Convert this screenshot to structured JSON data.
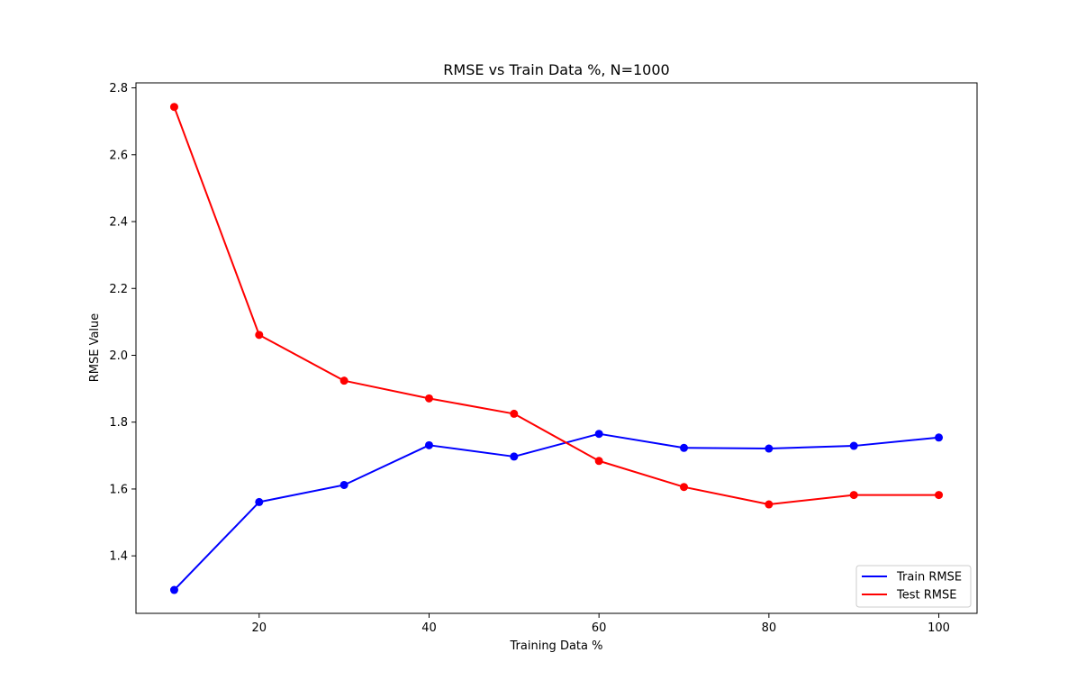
{
  "chart_data": {
    "type": "line",
    "title": "RMSE vs Train Data %, N=1000",
    "xlabel": "Training Data %",
    "ylabel": "RMSE Value",
    "x": [
      10,
      20,
      30,
      40,
      50,
      60,
      70,
      80,
      90,
      100
    ],
    "xlim": [
      5.5,
      104.5
    ],
    "ylim": [
      1.228,
      2.815
    ],
    "xticks": [
      20,
      40,
      60,
      80,
      100
    ],
    "xtick_labels": [
      "20",
      "40",
      "60",
      "80",
      "100"
    ],
    "yticks": [
      1.4,
      1.6,
      1.8,
      2.0,
      2.2,
      2.4,
      2.6,
      2.8
    ],
    "ytick_labels": [
      "1.4",
      "1.6",
      "1.8",
      "2.0",
      "2.2",
      "2.4",
      "2.6",
      "2.8"
    ],
    "grid": false,
    "legend_position": "bottom-right",
    "series": [
      {
        "name": "Train RMSE",
        "color": "#0000ff",
        "values": [
          1.298,
          1.561,
          1.612,
          1.731,
          1.697,
          1.765,
          1.723,
          1.721,
          1.729,
          1.754
        ]
      },
      {
        "name": "Test RMSE",
        "color": "#ff0000",
        "values": [
          2.743,
          2.061,
          1.924,
          1.871,
          1.825,
          1.684,
          1.606,
          1.554,
          1.582,
          1.582
        ]
      }
    ]
  }
}
